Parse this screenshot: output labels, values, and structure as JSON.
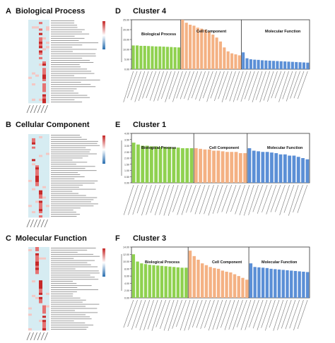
{
  "left_panels": [
    {
      "letter": "A",
      "title": "Biological Process"
    },
    {
      "letter": "B",
      "title": "Cellular Component"
    },
    {
      "letter": "C",
      "title": "Molecular Function"
    }
  ],
  "right_panels": [
    {
      "letter": "D",
      "title": "Cluster 4",
      "sections": [
        "Biological Process",
        "Cell Component",
        "Molecular Function"
      ]
    },
    {
      "letter": "E",
      "title": "Cluster 1",
      "sections": [
        "Biological Process",
        "Cell Component",
        "Molecular Function"
      ]
    },
    {
      "letter": "F",
      "title": "Cluster 3",
      "sections": [
        "Biological Process",
        "Cell Component",
        "Molecular Function"
      ]
    }
  ],
  "colors": {
    "bp": "#8fd14f",
    "cc": "#f4b183",
    "mf": "#5b8fd6",
    "heat_low": "#d6ecf2",
    "heat_high": "#c62828"
  },
  "chart_data": [
    {
      "type": "bar",
      "title": "Cluster 4",
      "ylim": [
        0,
        25
      ],
      "yticks": [
        "25.00",
        "20.00",
        "15.00",
        "10.00",
        "5.00",
        "0.00"
      ],
      "series": [
        {
          "name": "Biological Process",
          "values": [
            12,
            12,
            11.8,
            11.8,
            11.7,
            11.6,
            11.5,
            11.5,
            11.4,
            11.3,
            11.2,
            11.1,
            11
          ]
        },
        {
          "name": "Cell Component",
          "values": [
            26.5,
            23.5,
            22.5,
            22,
            21,
            20.5,
            20,
            19,
            17.5,
            16,
            14,
            11,
            9,
            8,
            7.5,
            7
          ]
        },
        {
          "name": "Molecular Function",
          "values": [
            8.5,
            5.5,
            5,
            4.8,
            4.7,
            4.5,
            4.4,
            4.3,
            4.2,
            4.1,
            4,
            3.9,
            3.8,
            3.7,
            3.6,
            3.5,
            3.4,
            3.3
          ]
        }
      ]
    },
    {
      "type": "bar",
      "title": "Cluster 1",
      "ylim": [
        0,
        4
      ],
      "yticks": [
        "4.00",
        "3.50",
        "3.00",
        "2.50",
        "2.00",
        "1.50",
        "1.00",
        "0.50",
        "0.00"
      ],
      "series": [
        {
          "name": "Biological Process",
          "values": [
            3.25,
            3.1,
            3,
            3,
            2.95,
            2.95,
            2.9,
            2.9,
            2.9,
            2.85,
            2.85,
            2.8,
            2.8,
            2.8
          ]
        },
        {
          "name": "Cell Component",
          "values": [
            2.8,
            2.75,
            2.7,
            2.7,
            2.6,
            2.6,
            2.55,
            2.5,
            2.5,
            2.5,
            2.4,
            2.4
          ]
        },
        {
          "name": "Molecular Function",
          "values": [
            2.8,
            2.6,
            2.55,
            2.5,
            2.5,
            2.45,
            2.4,
            2.3,
            2.3,
            2.2,
            2.2,
            2.1,
            2,
            1.9
          ]
        }
      ]
    },
    {
      "type": "bar",
      "title": "Cluster 3",
      "ylim": [
        0,
        14
      ],
      "yticks": [
        "14.00",
        "12.00",
        "10.00",
        "8.00",
        "6.00",
        "4.00",
        "2.00",
        "0.00"
      ],
      "series": [
        {
          "name": "Biological Process",
          "values": [
            12,
            10,
            9.5,
            9.3,
            9.1,
            9,
            8.9,
            8.8,
            8.7,
            8.6,
            8.5,
            8.4,
            8.3,
            8.3
          ]
        },
        {
          "name": "Cell Component",
          "values": [
            13,
            11.5,
            10.5,
            9.5,
            9,
            8.5,
            8.2,
            8,
            7.5,
            7.2,
            7,
            6.5,
            6,
            5.5,
            5
          ]
        },
        {
          "name": "Molecular Function",
          "values": [
            9.5,
            8.5,
            8.4,
            8.3,
            8.2,
            8,
            7.9,
            7.8,
            7.7,
            7.6,
            7.5,
            7.4,
            7.3,
            7.2,
            7.1
          ]
        }
      ]
    }
  ]
}
